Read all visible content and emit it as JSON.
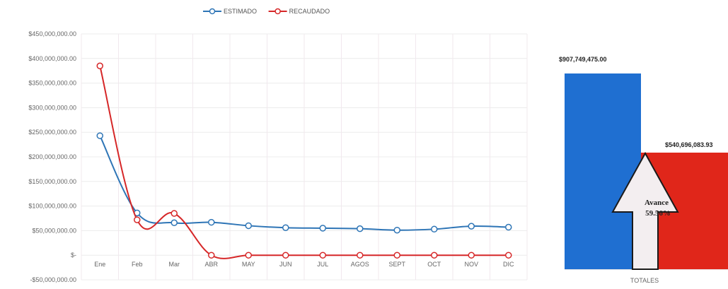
{
  "chart_data": [
    {
      "type": "line",
      "title": "",
      "xlabel": "",
      "ylabel": "",
      "categories": [
        "Ene",
        "Feb",
        "Mar",
        "ABR",
        "MAY",
        "JUN",
        "JUL",
        "AGOS",
        "SEPT",
        "OCT",
        "NOV",
        "DIC"
      ],
      "ylim": [
        -50000000,
        450000000
      ],
      "yticks": [
        {
          "value": 450000000,
          "label": "$450,000,000.00"
        },
        {
          "value": 400000000,
          "label": "$400,000,000.00"
        },
        {
          "value": 350000000,
          "label": "$350,000,000.00"
        },
        {
          "value": 300000000,
          "label": "$300,000,000.00"
        },
        {
          "value": 250000000,
          "label": "$250,000,000.00"
        },
        {
          "value": 200000000,
          "label": "$200,000,000.00"
        },
        {
          "value": 150000000,
          "label": "$150,000,000.00"
        },
        {
          "value": 100000000,
          "label": "$100,000,000.00"
        },
        {
          "value": 50000000,
          "label": "$50,000,000.00"
        },
        {
          "value": 0,
          "label": "$-"
        },
        {
          "value": -50000000,
          "label": "-$50,000,000.00"
        }
      ],
      "grid": true,
      "legend": "top",
      "series": [
        {
          "name": "ESTIMADO",
          "color": "#2e75b6",
          "values": [
            243000000,
            86000000,
            66000000,
            67000000,
            60000000,
            56000000,
            55000000,
            54000000,
            51000000,
            53000000,
            59000000,
            57000000
          ]
        },
        {
          "name": "RECAUDADO",
          "color": "#d62728",
          "values": [
            385000000,
            72000000,
            85000000,
            0,
            0,
            0,
            0,
            0,
            0,
            0,
            0,
            0
          ]
        }
      ]
    },
    {
      "type": "bar",
      "title": "",
      "categories": [
        "TOTALES"
      ],
      "series": [
        {
          "color": "#1f6fd1",
          "values": [
            907749475.0
          ],
          "label": "$907,749,475.00"
        },
        {
          "color": "#e0261a",
          "values": [
            540696083.93
          ],
          "label": "$540,696,083.93"
        }
      ],
      "annotation": {
        "title": "Avance",
        "value": "59.56%"
      }
    }
  ]
}
